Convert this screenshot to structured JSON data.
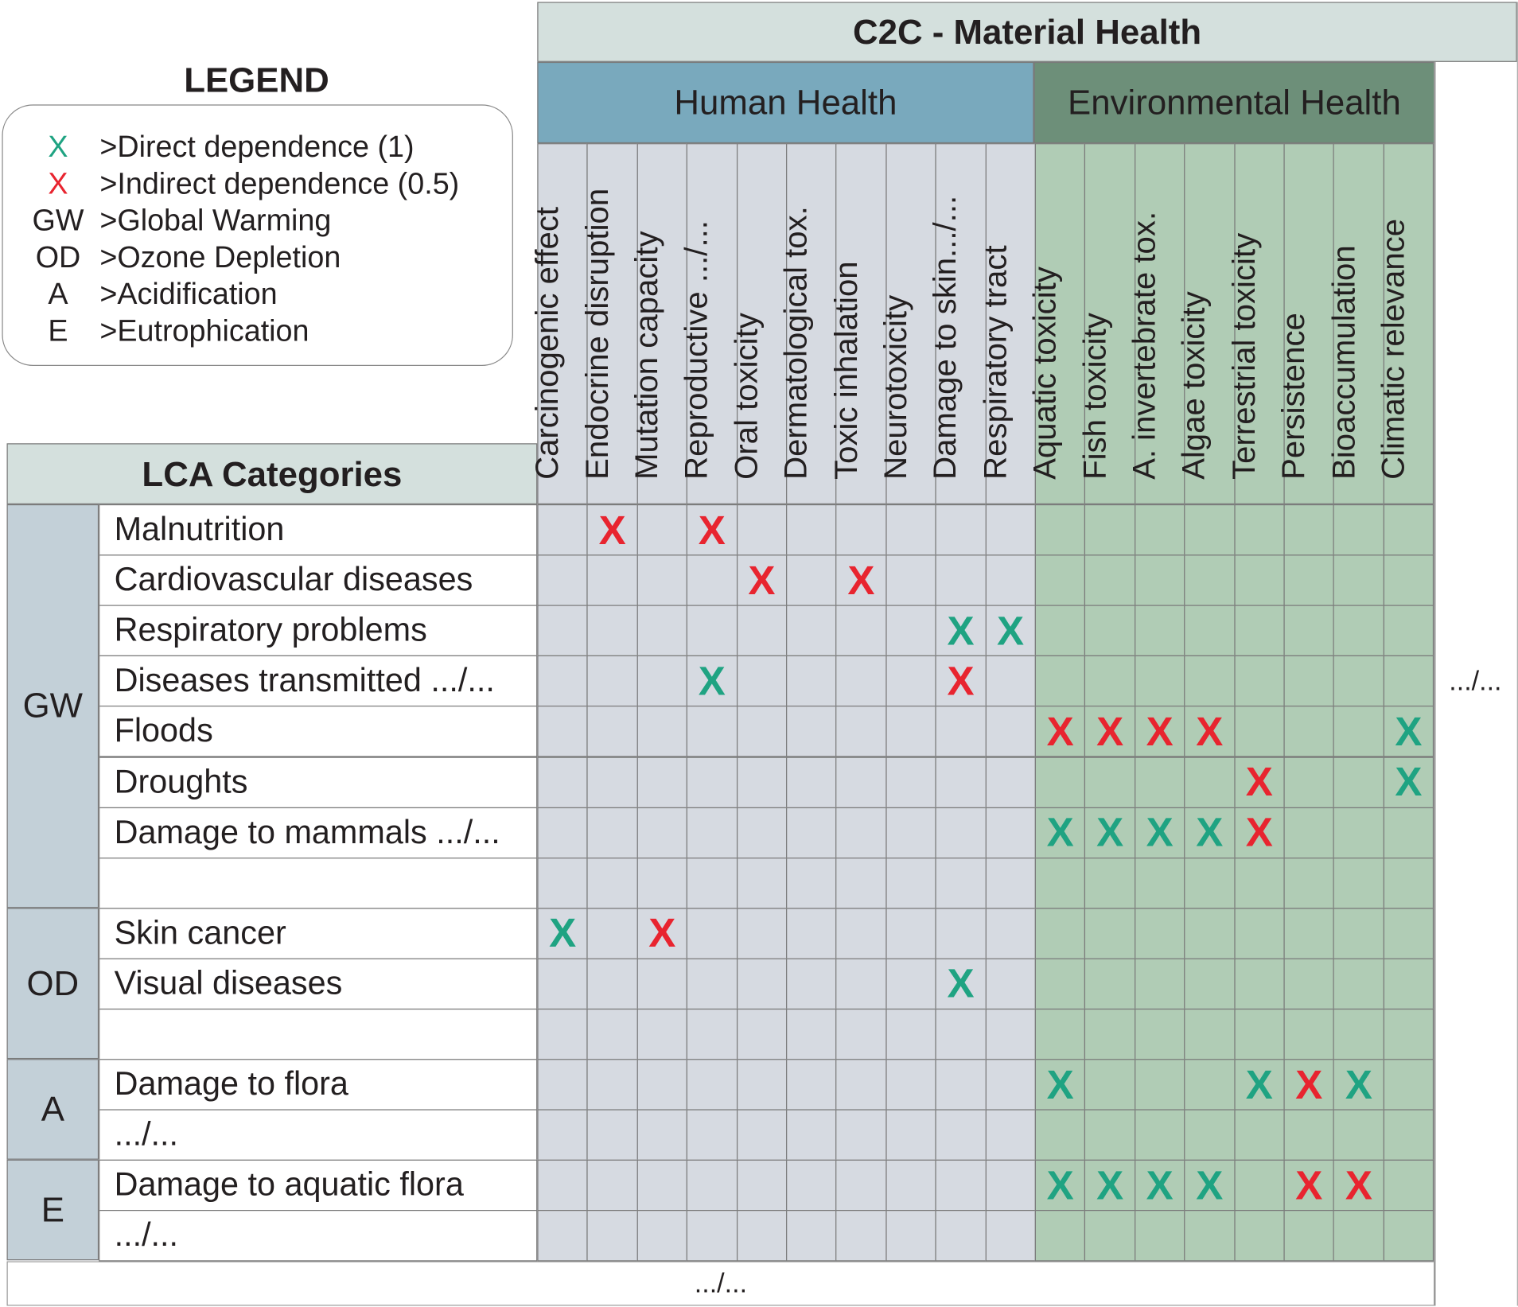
{
  "title": "C2C - Material Health",
  "legend": {
    "title": "LEGEND",
    "items": [
      {
        "symbol": "X",
        "color": "#1fa382",
        "label": ">Direct dependence (1)"
      },
      {
        "symbol": "X",
        "color": "#e8242f",
        "label": ">Indirect dependence (0.5)"
      },
      {
        "symbol": "GW",
        "color": "#231f20",
        "label": ">Global Warming"
      },
      {
        "symbol": "OD",
        "color": "#231f20",
        "label": ">Ozone Depletion"
      },
      {
        "symbol": "A",
        "color": "#231f20",
        "label": ">Acidification"
      },
      {
        "symbol": "E",
        "color": "#231f20",
        "label": ">Eutrophication"
      }
    ]
  },
  "groups": {
    "human": "Human Health",
    "environmental": "Environmental Health"
  },
  "lca_header": "LCA Categories",
  "columns": [
    {
      "label": "Carcinogenic effect",
      "group": "human"
    },
    {
      "label": "Endocrine disruption",
      "group": "human"
    },
    {
      "label": "Mutation capacity",
      "group": "human"
    },
    {
      "label": "Reproductive .../...",
      "group": "human"
    },
    {
      "label": "Oral toxicity",
      "group": "human"
    },
    {
      "label": "Dermatological tox.",
      "group": "human"
    },
    {
      "label": "Toxic inhalation",
      "group": "human"
    },
    {
      "label": "Neurotoxicity",
      "group": "human"
    },
    {
      "label": "Damage to skin.../...",
      "group": "human"
    },
    {
      "label": "Respiratory tract",
      "group": "human"
    },
    {
      "label": "Aquatic toxicity",
      "group": "environmental"
    },
    {
      "label": "Fish toxicity",
      "group": "environmental"
    },
    {
      "label": "A. invertebrate tox.",
      "group": "environmental"
    },
    {
      "label": "Algae toxicity",
      "group": "environmental"
    },
    {
      "label": "Terrestrial toxicity",
      "group": "environmental"
    },
    {
      "label": "Persistence",
      "group": "environmental"
    },
    {
      "label": "Bioaccumulation",
      "group": "environmental"
    },
    {
      "label": "Climatic relevance",
      "group": "environmental"
    }
  ],
  "categories": [
    {
      "label": "GW",
      "rows": [
        {
          "label": "Malnutrition",
          "marks": [
            {
              "col": 1,
              "type": "indirect"
            },
            {
              "col": 3,
              "type": "indirect"
            }
          ]
        },
        {
          "label": "Cardiovascular diseases",
          "marks": [
            {
              "col": 4,
              "type": "indirect"
            },
            {
              "col": 6,
              "type": "indirect"
            }
          ]
        },
        {
          "label": "Respiratory problems",
          "marks": [
            {
              "col": 8,
              "type": "direct"
            },
            {
              "col": 9,
              "type": "direct"
            }
          ]
        },
        {
          "label": "Diseases transmitted .../...",
          "marks": [
            {
              "col": 3,
              "type": "direct"
            },
            {
              "col": 8,
              "type": "indirect"
            }
          ]
        },
        {
          "label": "Floods",
          "marks": [
            {
              "col": 10,
              "type": "indirect"
            },
            {
              "col": 11,
              "type": "indirect"
            },
            {
              "col": 12,
              "type": "indirect"
            },
            {
              "col": 13,
              "type": "indirect"
            },
            {
              "col": 17,
              "type": "direct"
            }
          ]
        },
        {
          "label": "Droughts",
          "marks": [
            {
              "col": 14,
              "type": "indirect"
            },
            {
              "col": 17,
              "type": "direct"
            }
          ]
        },
        {
          "label": "Damage to mammals .../...",
          "marks": [
            {
              "col": 10,
              "type": "direct"
            },
            {
              "col": 11,
              "type": "direct"
            },
            {
              "col": 12,
              "type": "direct"
            },
            {
              "col": 13,
              "type": "direct"
            },
            {
              "col": 14,
              "type": "indirect"
            }
          ]
        },
        {
          "label": "",
          "marks": []
        }
      ]
    },
    {
      "label": "OD",
      "rows": [
        {
          "label": "Skin cancer",
          "marks": [
            {
              "col": 0,
              "type": "direct"
            },
            {
              "col": 2,
              "type": "indirect"
            }
          ]
        },
        {
          "label": "Visual diseases",
          "marks": [
            {
              "col": 8,
              "type": "direct"
            }
          ]
        },
        {
          "label": "",
          "marks": []
        }
      ]
    },
    {
      "label": "A",
      "rows": [
        {
          "label": "Damage to flora",
          "marks": [
            {
              "col": 10,
              "type": "direct"
            },
            {
              "col": 14,
              "type": "direct"
            },
            {
              "col": 15,
              "type": "indirect"
            },
            {
              "col": 16,
              "type": "direct"
            }
          ]
        },
        {
          "label": ".../...",
          "marks": []
        }
      ]
    },
    {
      "label": "E",
      "rows": [
        {
          "label": "Damage to aquatic flora",
          "marks": [
            {
              "col": 10,
              "type": "direct"
            },
            {
              "col": 11,
              "type": "direct"
            },
            {
              "col": 12,
              "type": "direct"
            },
            {
              "col": 13,
              "type": "direct"
            },
            {
              "col": 15,
              "type": "indirect"
            },
            {
              "col": 16,
              "type": "indirect"
            }
          ]
        },
        {
          "label": ".../...",
          "marks": []
        }
      ]
    }
  ],
  "mark_symbol": "X",
  "right_ellipsis": ".../...",
  "bottom_ellipsis": ".../..."
}
